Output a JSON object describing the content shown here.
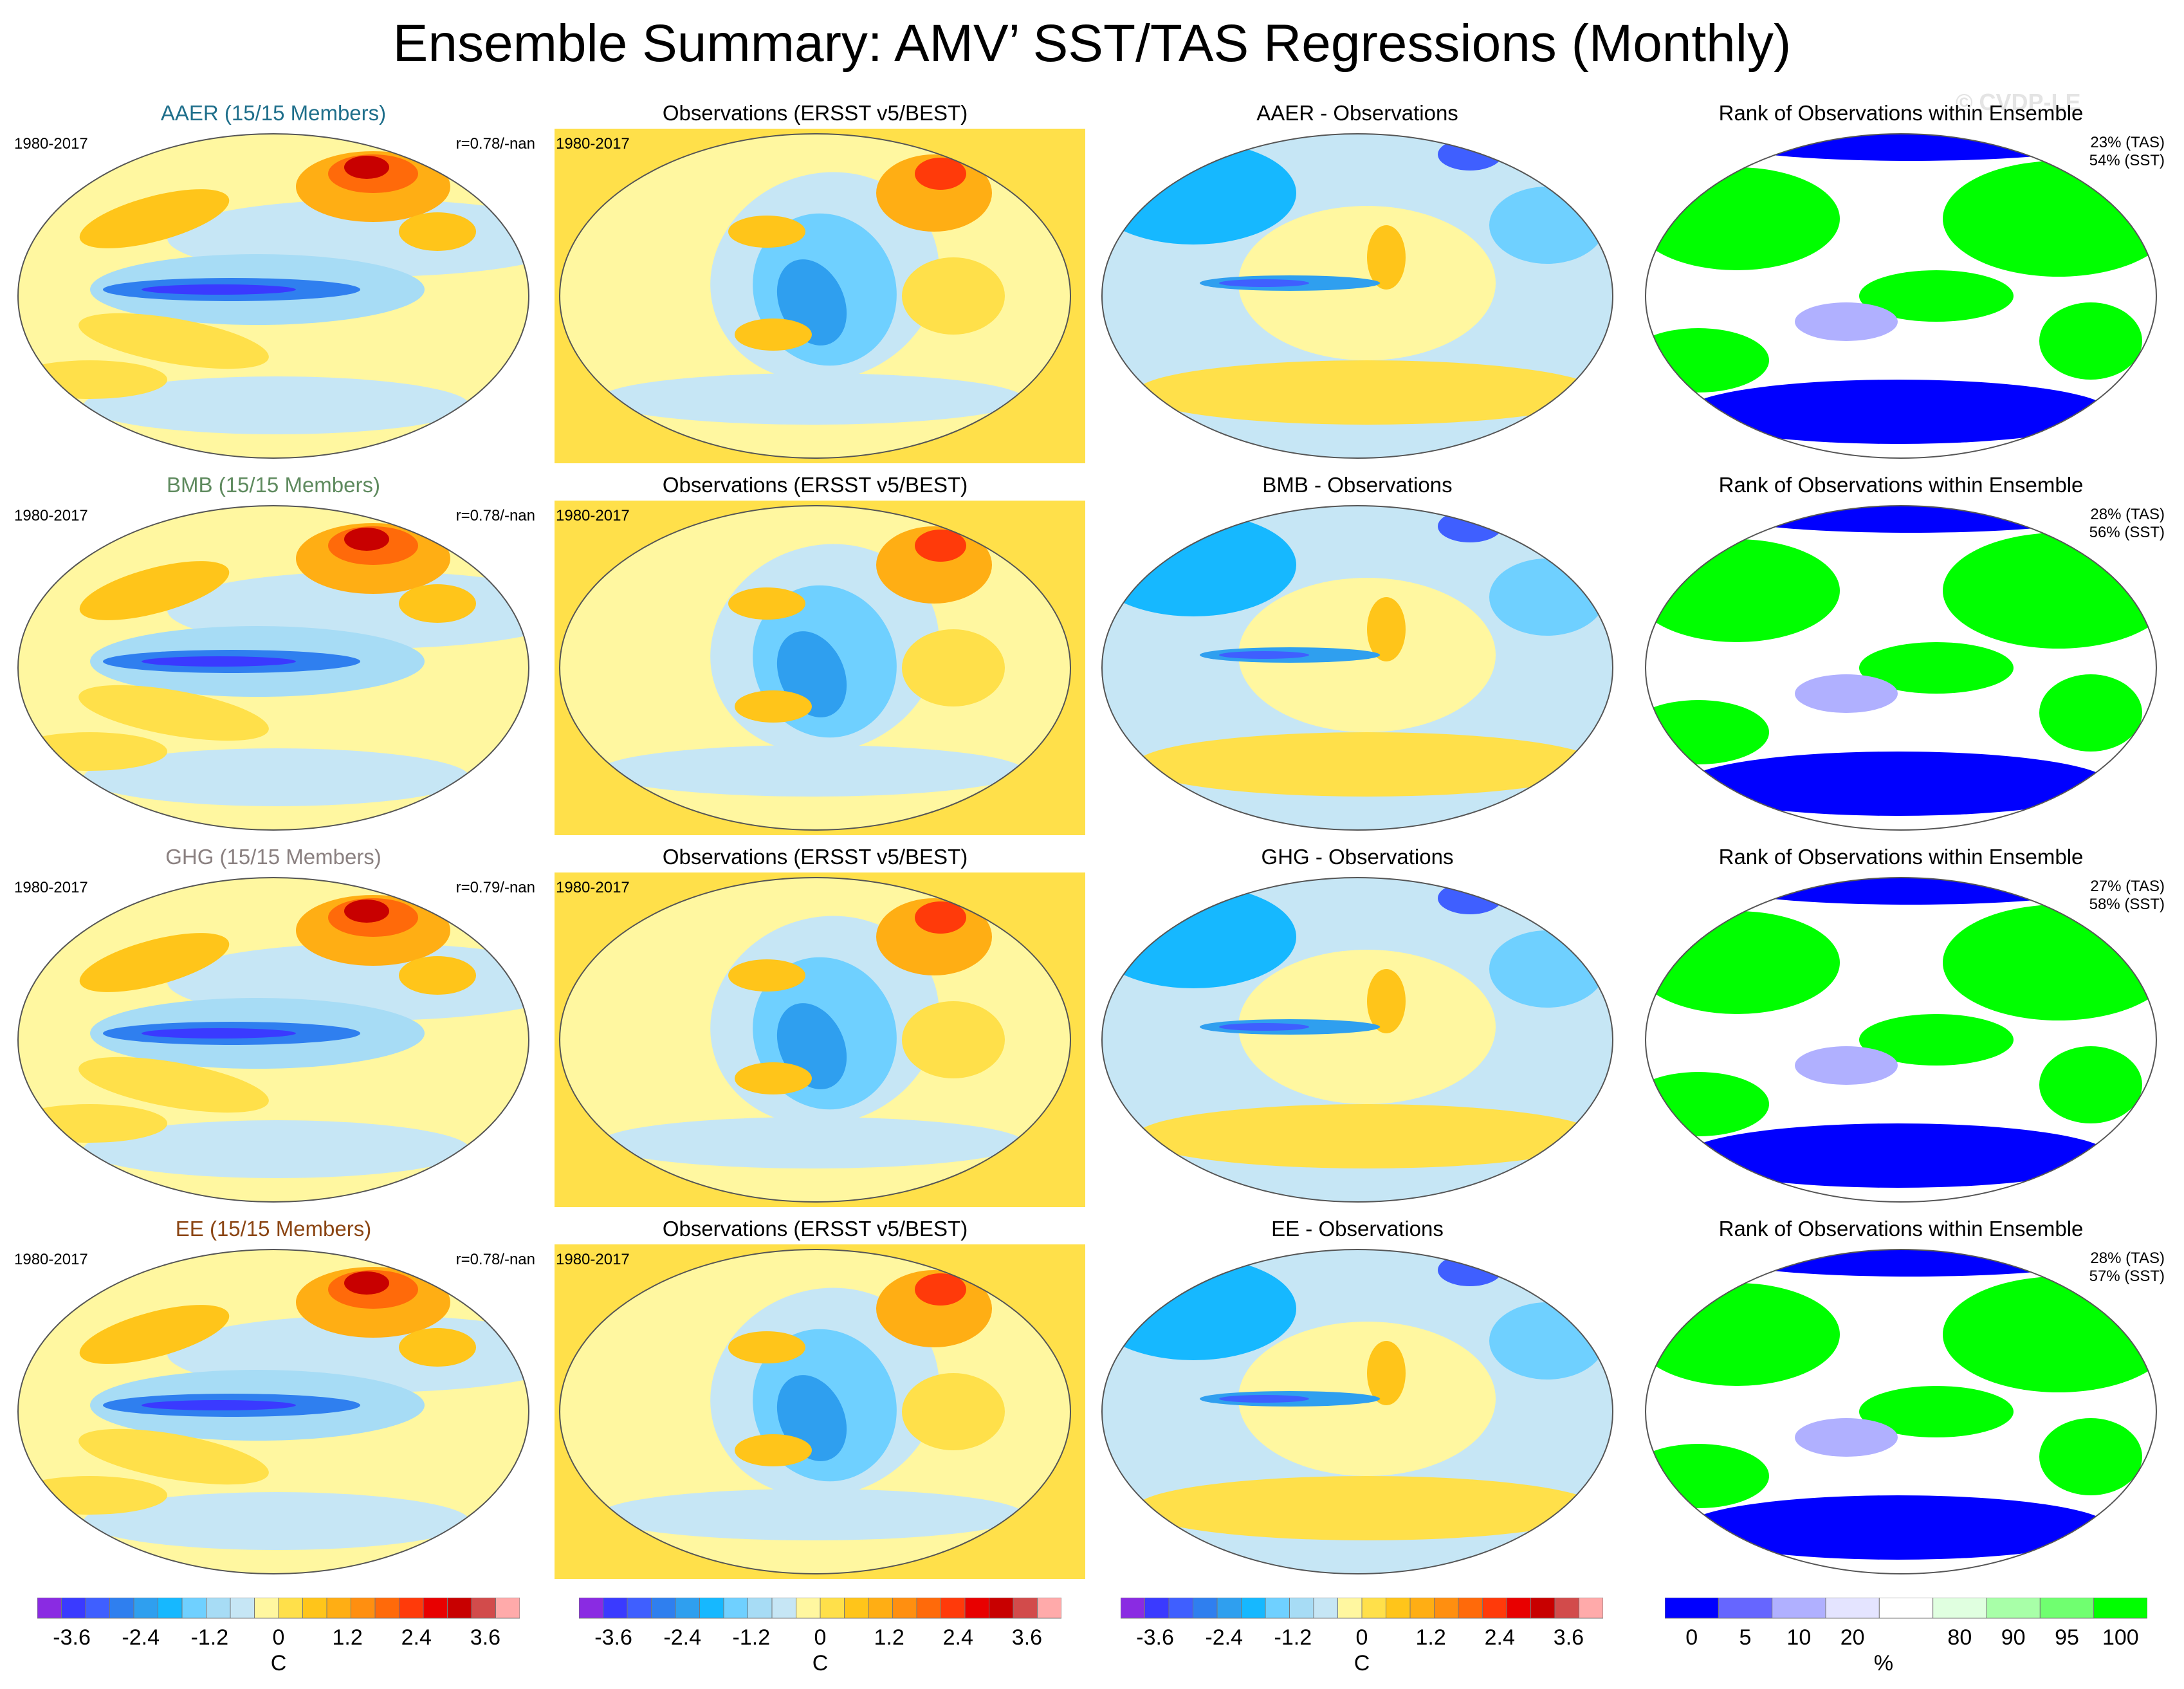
{
  "title": "Ensemble Summary: AMV’ SST/TAS Regressions (Monthly)",
  "watermark": "© CVDP-LE",
  "period": "1980-2017",
  "rows": [
    {
      "model": "AAER (15/15 Members)",
      "model_color": "#1f6f8b",
      "corr": "r=0.78/-nan",
      "obs_title": "Observations (ERSST v5/BEST)",
      "diff_title": "AAER - Observations",
      "rank_title": "Rank of Observations within Ensemble",
      "rank_tas": "23% (TAS)",
      "rank_sst": "54% (SST)"
    },
    {
      "model": "BMB (15/15 Members)",
      "model_color": "#5e8a5e",
      "corr": "r=0.78/-nan",
      "obs_title": "Observations (ERSST v5/BEST)",
      "diff_title": "BMB - Observations",
      "rank_title": "Rank of Observations within Ensemble",
      "rank_tas": "28% (TAS)",
      "rank_sst": "56% (SST)"
    },
    {
      "model": "GHG (15/15 Members)",
      "model_color": "#8a8080",
      "corr": "r=0.79/-nan",
      "obs_title": "Observations (ERSST v5/BEST)",
      "diff_title": "GHG - Observations",
      "rank_title": "Rank of Observations within Ensemble",
      "rank_tas": "27% (TAS)",
      "rank_sst": "58% (SST)"
    },
    {
      "model": "EE (15/15 Members)",
      "model_color": "#8b4513",
      "corr": "r=0.78/-nan",
      "obs_title": "Observations (ERSST v5/BEST)",
      "diff_title": "EE - Observations",
      "rank_title": "Rank of Observations within Ensemble",
      "rank_tas": "28% (TAS)",
      "rank_sst": "57% (SST)"
    }
  ],
  "chart_data": {
    "type": "heatmap",
    "description_units": "C",
    "colorbar_temperature": {
      "unit": "C",
      "tick_labels": [
        "-3.6",
        "-2.4",
        "-1.2",
        "0",
        "1.2",
        "2.4",
        "3.6"
      ],
      "tick_values": [
        -3.6,
        -2.4,
        -1.2,
        0,
        1.2,
        2.4,
        3.6
      ],
      "range": [
        -4.2,
        4.2
      ],
      "colors": [
        "#8a2be2",
        "#3a3aff",
        "#3f5fff",
        "#2f7fef",
        "#2f9fef",
        "#16b8ff",
        "#6fd0ff",
        "#a7dcf5",
        "#c6e6f5",
        "#fff7a0",
        "#ffe04a",
        "#ffc51a",
        "#ffae14",
        "#ff8f10",
        "#ff6a0a",
        "#ff3a0a",
        "#e80000",
        "#c80000",
        "#d24b4b",
        "#ffaaaa"
      ]
    },
    "colorbar_rank": {
      "unit": "%",
      "tick_labels": [
        "0",
        "5",
        "10",
        "20",
        "80",
        "90",
        "95",
        "100"
      ],
      "colors": [
        "#0000ff",
        "#6666ff",
        "#b0b0ff",
        "#e4e4ff",
        "#ffffff",
        "#e0ffe0",
        "#a8ffa8",
        "#70ff70",
        "#00ff00"
      ]
    }
  }
}
